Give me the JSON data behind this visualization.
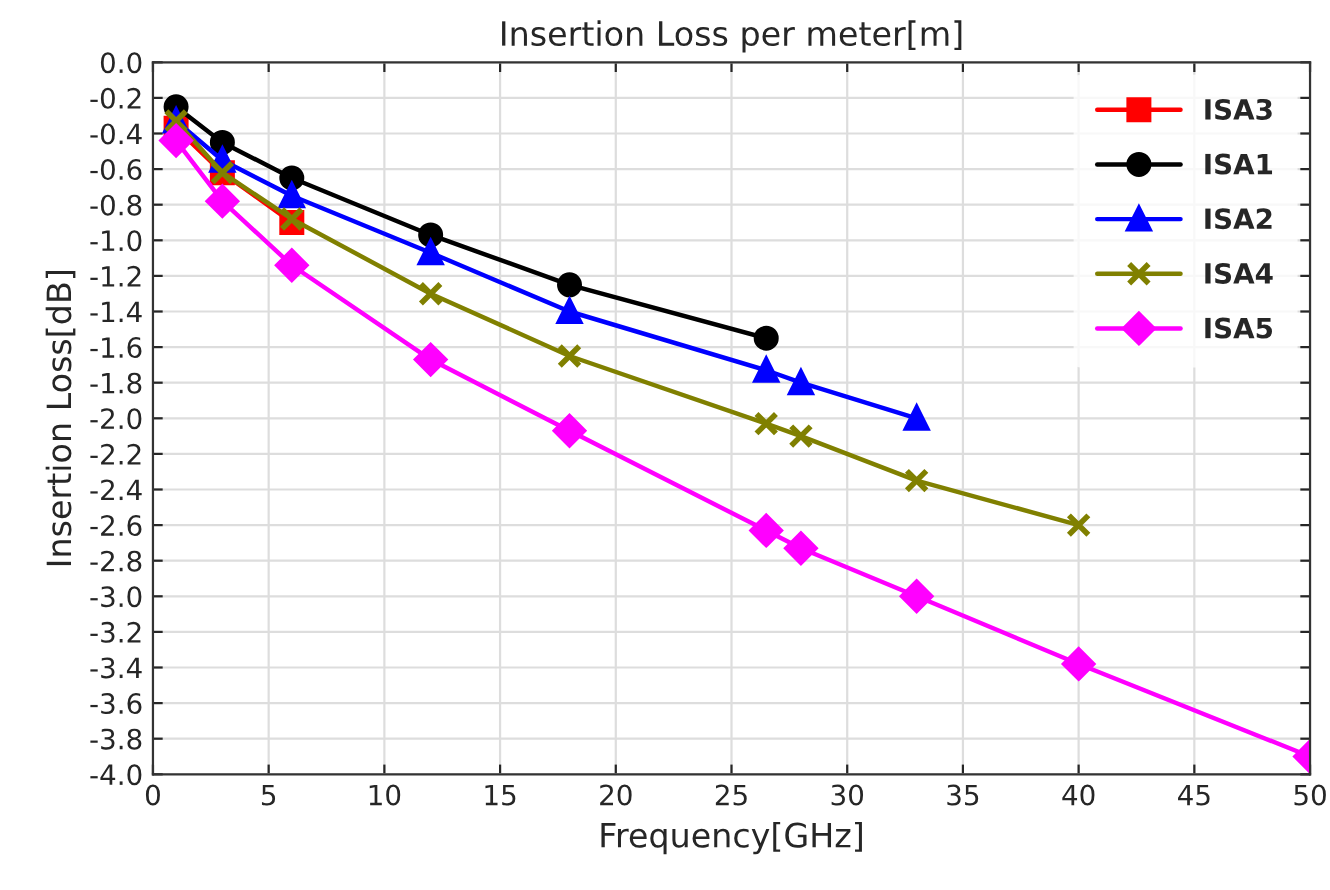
{
  "chart_data": {
    "type": "line",
    "title": "Insertion Loss per meter[m]",
    "xlabel": "Frequency[GHz]",
    "ylabel": "Insertion Loss[dB]",
    "xlim": [
      0,
      50
    ],
    "xticks": [
      0,
      5,
      10,
      15,
      20,
      25,
      30,
      35,
      40,
      45,
      50
    ],
    "ylim": [
      -4.0,
      0.0
    ],
    "yticks": [
      {
        "value": 0.0,
        "label": "0.0"
      },
      {
        "value": -0.2,
        "label": "-0.2"
      },
      {
        "value": -0.4,
        "label": "-0.4"
      },
      {
        "value": -0.6,
        "label": "-0.6"
      },
      {
        "value": -0.8,
        "label": "-0.8"
      },
      {
        "value": -1.0,
        "label": "-1.0"
      },
      {
        "value": -1.2,
        "label": "-1.2"
      },
      {
        "value": -1.4,
        "label": "-1.4"
      },
      {
        "value": -1.6,
        "label": "-1.6"
      },
      {
        "value": -1.8,
        "label": "-1.8"
      },
      {
        "value": -2.0,
        "label": "-2.0"
      },
      {
        "value": -2.2,
        "label": "-2.2"
      },
      {
        "value": -2.4,
        "label": "-2.4"
      },
      {
        "value": -2.6,
        "label": "-2.6"
      },
      {
        "value": -2.8,
        "label": "-2.8"
      },
      {
        "value": -3.0,
        "label": "-3.0"
      },
      {
        "value": -3.2,
        "label": "-3.2"
      },
      {
        "value": -3.4,
        "label": "-3.4"
      },
      {
        "value": -3.6,
        "label": "-3.6"
      },
      {
        "value": -3.8,
        "label": "-3.8"
      },
      {
        "value": -4.0,
        "label": "-4.0"
      }
    ],
    "grid": true,
    "legend": "top right",
    "series": [
      {
        "name": "ISA3",
        "color": "#ff0000",
        "marker": "square",
        "x": [
          1,
          3,
          6
        ],
        "values": [
          -0.37,
          -0.62,
          -0.9
        ]
      },
      {
        "name": "ISA1",
        "color": "#000000",
        "marker": "circle",
        "x": [
          1,
          3,
          6,
          12,
          18,
          26.5
        ],
        "values": [
          -0.25,
          -0.45,
          -0.65,
          -0.97,
          -1.25,
          -1.55
        ]
      },
      {
        "name": "ISA2",
        "color": "#0000ff",
        "marker": "triangle",
        "x": [
          1,
          3,
          6,
          12,
          18,
          26.5,
          28,
          33
        ],
        "values": [
          -0.33,
          -0.55,
          -0.75,
          -1.07,
          -1.4,
          -1.73,
          -1.8,
          -2.0
        ]
      },
      {
        "name": "ISA4",
        "color": "#808000",
        "marker": "cross",
        "x": [
          1,
          3,
          6,
          12,
          18,
          26.5,
          28,
          33,
          40
        ],
        "values": [
          -0.33,
          -0.62,
          -0.88,
          -1.3,
          -1.65,
          -2.03,
          -2.1,
          -2.35,
          -2.6
        ]
      },
      {
        "name": "ISA5",
        "color": "#ff00ff",
        "marker": "diamond",
        "x": [
          1,
          3,
          6,
          12,
          18,
          26.5,
          28,
          33,
          40,
          50
        ],
        "values": [
          -0.44,
          -0.78,
          -1.14,
          -1.67,
          -2.07,
          -2.63,
          -2.73,
          -3.0,
          -3.38,
          -3.9
        ]
      }
    ]
  }
}
